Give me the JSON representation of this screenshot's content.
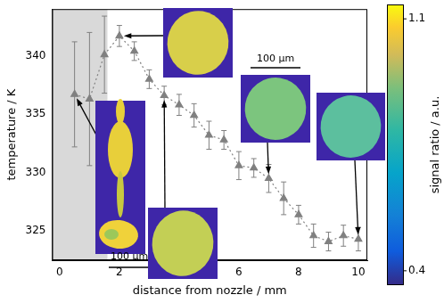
{
  "chart_data": {
    "type": "scatter",
    "x_label": "distance from nozzle / mm",
    "y_label": "temperature / K",
    "x": [
      0.5,
      1.0,
      1.5,
      2.0,
      2.5,
      3.0,
      3.5,
      4.0,
      4.5,
      5.0,
      5.5,
      6.0,
      6.5,
      7.0,
      7.5,
      8.0,
      8.5,
      9.0,
      9.5,
      10.0
    ],
    "values": [
      336.7,
      336.3,
      340.1,
      341.7,
      340.4,
      338.0,
      336.6,
      335.8,
      334.9,
      333.2,
      332.8,
      330.6,
      330.4,
      329.5,
      327.8,
      326.4,
      324.6,
      324.1,
      324.6,
      324.3
    ],
    "errors": [
      4.5,
      5.7,
      3.3,
      0.9,
      0.8,
      0.8,
      0.8,
      0.9,
      1.0,
      1.2,
      0.8,
      1.2,
      0.8,
      1.2,
      1.4,
      0.8,
      1.0,
      0.8,
      0.9,
      1.0
    ],
    "color": "#808080",
    "marker": "triangle",
    "line_style": "dotted",
    "xlim": [
      -0.25,
      10.3
    ],
    "xticks": [
      0,
      2,
      4,
      6,
      8,
      10
    ],
    "ylim": [
      322.5,
      344
    ],
    "yticks": [
      325,
      330,
      335,
      340
    ],
    "grid": false,
    "shaded_region": [
      -0.25,
      1.6
    ],
    "colorbar": {
      "label": "signal ratio / a.u.",
      "range": [
        0.36,
        1.14
      ],
      "ticks": [
        0.4,
        1.1
      ]
    },
    "insets": [
      {
        "points_to": 0.5,
        "scale_label": "100 µm"
      },
      {
        "points_to": 2.0
      },
      {
        "points_to": 3.5
      },
      {
        "points_to": 7.0,
        "scale_label": "100 µm"
      },
      {
        "points_to": 10.0
      }
    ]
  }
}
